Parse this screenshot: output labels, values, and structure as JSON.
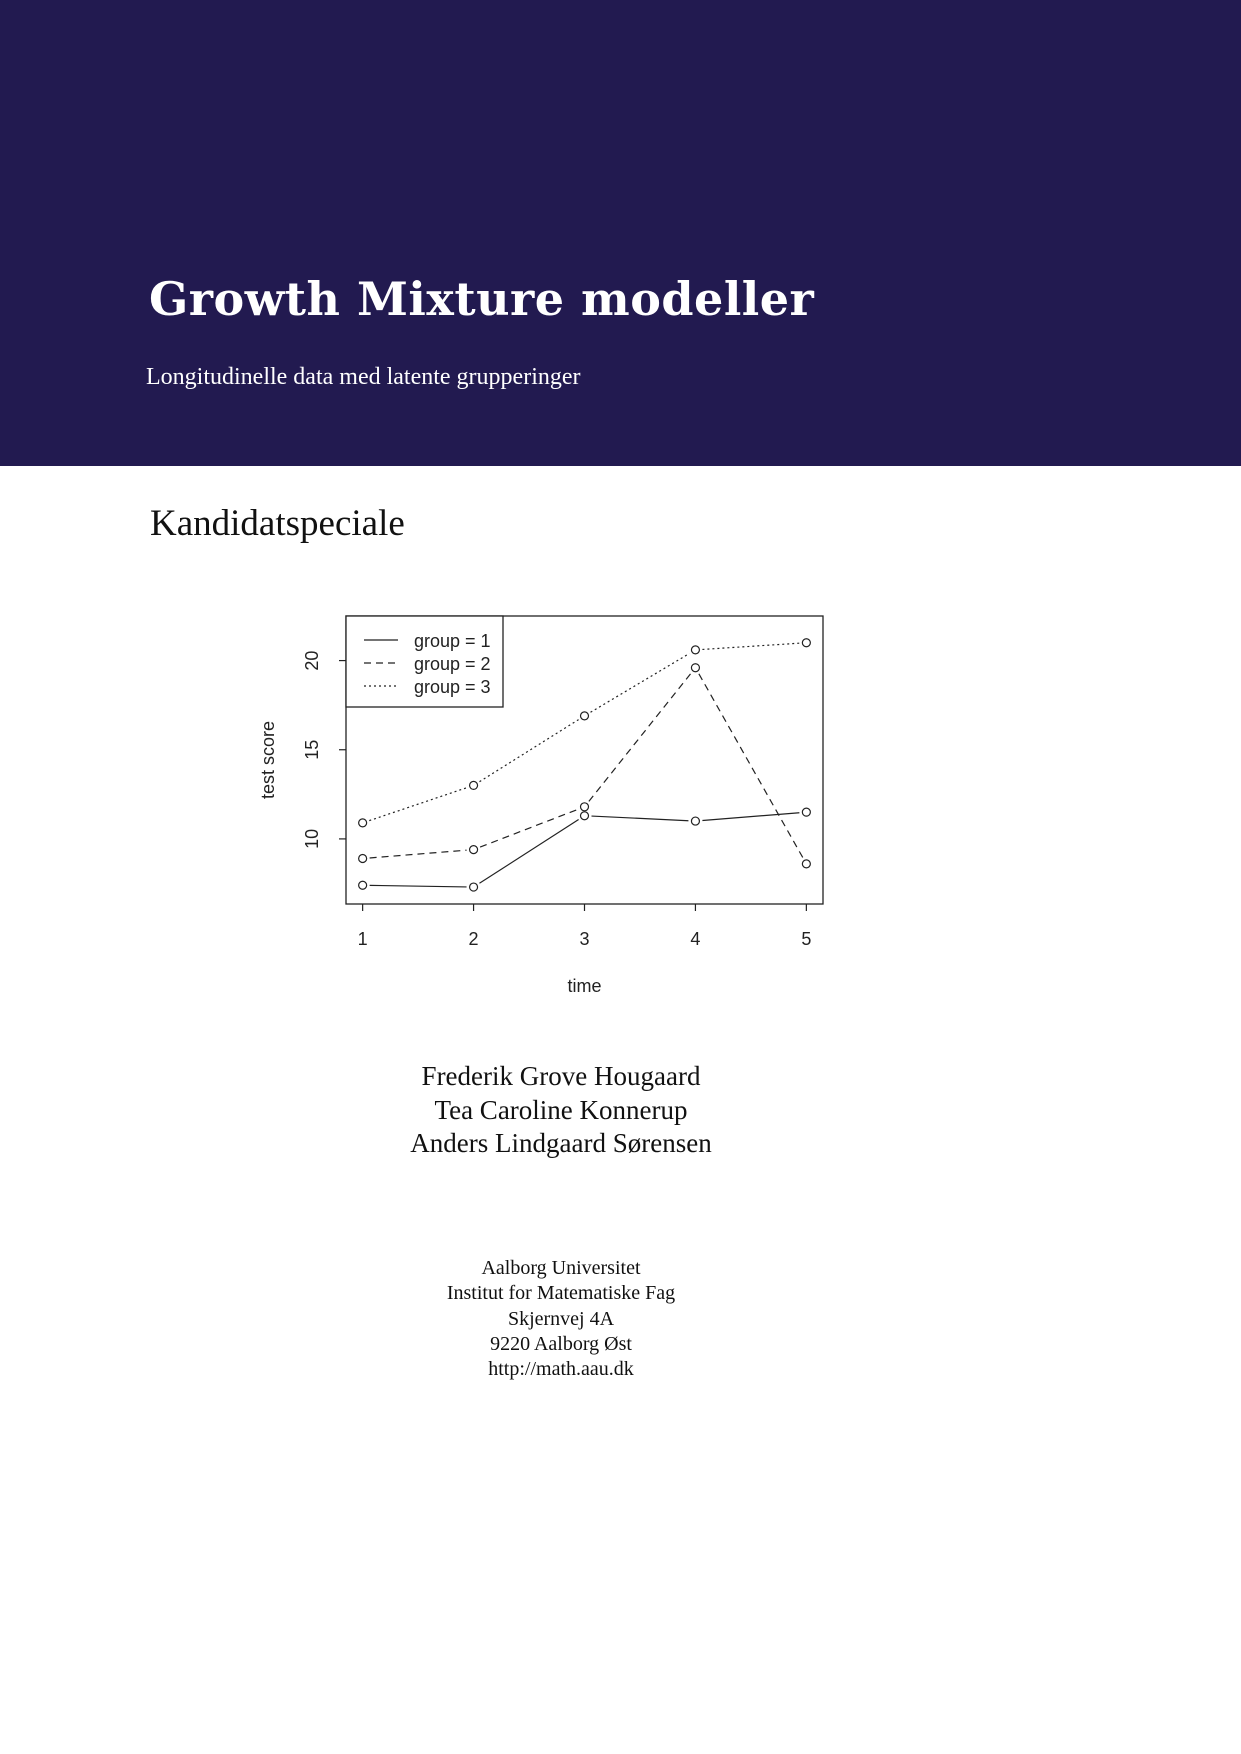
{
  "header": {
    "title": "Growth Mixture modeller",
    "subtitle": "Longitudinelle data med latente grupperinger",
    "background_color": "#221a50"
  },
  "document_type": "Kandidatspeciale",
  "authors": [
    "Frederik Grove Hougaard",
    "Tea Caroline Konnerup",
    "Anders Lindgaard Sørensen"
  ],
  "address": [
    "Aalborg Universitet",
    "Institut for Matematiske Fag",
    "Skjernvej 4A",
    "9220 Aalborg Øst",
    "http://math.aau.dk"
  ],
  "chart_data": {
    "type": "line",
    "xlabel": "time",
    "ylabel": "test score",
    "x": [
      1,
      2,
      3,
      4,
      5
    ],
    "xticks": [
      "1",
      "2",
      "3",
      "4",
      "5"
    ],
    "yticks": [
      "10",
      "15",
      "20"
    ],
    "xlim": [
      0.85,
      5.15
    ],
    "ylim": [
      6.35,
      22.5
    ],
    "grid": false,
    "legend_placement": "top-left",
    "series": [
      {
        "name": "group = 1",
        "style": "solid",
        "values": [
          7.4,
          7.3,
          11.3,
          11.0,
          11.5
        ]
      },
      {
        "name": "group = 2",
        "style": "dashed",
        "values": [
          8.9,
          9.4,
          11.8,
          19.6,
          8.6
        ]
      },
      {
        "name": "group = 3",
        "style": "dotted",
        "values": [
          10.9,
          13.0,
          16.9,
          20.6,
          21.0
        ]
      }
    ]
  }
}
